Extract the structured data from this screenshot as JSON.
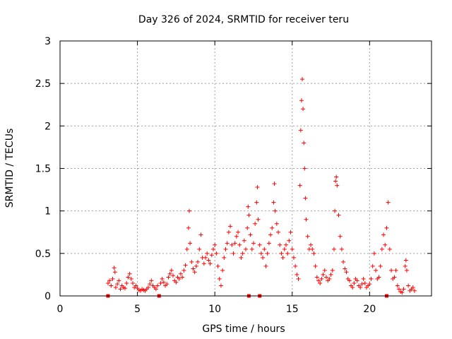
{
  "chart_data": {
    "type": "scatter",
    "title": "Day 326 of 2024, SRMTID for receiver teru",
    "xlabel": "GPS time / hours",
    "ylabel": "SRMTID / TECUs",
    "xlim": [
      0,
      24
    ],
    "ylim": [
      0,
      3
    ],
    "xticks": [
      0,
      5,
      10,
      15,
      20
    ],
    "yticks": [
      0,
      0.5,
      1,
      1.5,
      2,
      2.5,
      3
    ],
    "xtick_labels": [
      "0",
      "5",
      "10",
      "15",
      "20"
    ],
    "ytick_labels": [
      "0",
      "0.5",
      "1",
      "1.5",
      "2",
      "2.5",
      "3"
    ],
    "grid": true,
    "marker": "+",
    "color": "#ff0000",
    "gap_markers_x": [
      3.1,
      6.4,
      12.2,
      12.9,
      21.1
    ],
    "series": [
      {
        "name": "SRMTID",
        "points": [
          [
            3.1,
            0.15
          ],
          [
            3.2,
            0.18
          ],
          [
            3.3,
            0.12
          ],
          [
            3.4,
            0.2
          ],
          [
            3.5,
            0.33
          ],
          [
            3.55,
            0.28
          ],
          [
            3.6,
            0.1
          ],
          [
            3.7,
            0.14
          ],
          [
            3.8,
            0.18
          ],
          [
            3.9,
            0.08
          ],
          [
            4.0,
            0.12
          ],
          [
            4.1,
            0.1
          ],
          [
            4.2,
            0.09
          ],
          [
            4.3,
            0.15
          ],
          [
            4.4,
            0.22
          ],
          [
            4.5,
            0.26
          ],
          [
            4.6,
            0.2
          ],
          [
            4.7,
            0.15
          ],
          [
            4.8,
            0.1
          ],
          [
            4.9,
            0.12
          ],
          [
            5.0,
            0.09
          ],
          [
            5.1,
            0.07
          ],
          [
            5.2,
            0.06
          ],
          [
            5.3,
            0.08
          ],
          [
            5.4,
            0.07
          ],
          [
            5.5,
            0.06
          ],
          [
            5.6,
            0.08
          ],
          [
            5.7,
            0.1
          ],
          [
            5.8,
            0.14
          ],
          [
            5.9,
            0.18
          ],
          [
            6.0,
            0.12
          ],
          [
            6.1,
            0.1
          ],
          [
            6.2,
            0.08
          ],
          [
            6.3,
            0.12
          ],
          [
            6.5,
            0.15
          ],
          [
            6.6,
            0.2
          ],
          [
            6.7,
            0.16
          ],
          [
            6.8,
            0.12
          ],
          [
            6.9,
            0.14
          ],
          [
            7.0,
            0.22
          ],
          [
            7.1,
            0.26
          ],
          [
            7.2,
            0.3
          ],
          [
            7.3,
            0.24
          ],
          [
            7.4,
            0.18
          ],
          [
            7.5,
            0.16
          ],
          [
            7.6,
            0.22
          ],
          [
            7.7,
            0.2
          ],
          [
            7.8,
            0.26
          ],
          [
            7.9,
            0.22
          ],
          [
            8.0,
            0.3
          ],
          [
            8.1,
            0.36
          ],
          [
            8.2,
            0.55
          ],
          [
            8.3,
            0.8
          ],
          [
            8.35,
            1.0
          ],
          [
            8.4,
            0.62
          ],
          [
            8.5,
            0.4
          ],
          [
            8.6,
            0.32
          ],
          [
            8.7,
            0.28
          ],
          [
            8.8,
            0.35
          ],
          [
            8.9,
            0.4
          ],
          [
            9.0,
            0.55
          ],
          [
            9.1,
            0.72
          ],
          [
            9.2,
            0.45
          ],
          [
            9.3,
            0.38
          ],
          [
            9.4,
            0.45
          ],
          [
            9.5,
            0.5
          ],
          [
            9.6,
            0.42
          ],
          [
            9.7,
            0.38
          ],
          [
            9.8,
            0.48
          ],
          [
            9.9,
            0.55
          ],
          [
            10.0,
            0.6
          ],
          [
            10.1,
            0.5
          ],
          [
            10.2,
            0.35
          ],
          [
            10.3,
            0.2
          ],
          [
            10.4,
            0.12
          ],
          [
            10.5,
            0.3
          ],
          [
            10.6,
            0.45
          ],
          [
            10.7,
            0.55
          ],
          [
            10.8,
            0.62
          ],
          [
            10.9,
            0.75
          ],
          [
            11.0,
            0.82
          ],
          [
            11.1,
            0.6
          ],
          [
            11.2,
            0.5
          ],
          [
            11.3,
            0.62
          ],
          [
            11.4,
            0.7
          ],
          [
            11.5,
            0.75
          ],
          [
            11.6,
            0.6
          ],
          [
            11.7,
            0.45
          ],
          [
            11.8,
            0.5
          ],
          [
            11.9,
            0.65
          ],
          [
            12.0,
            0.55
          ],
          [
            12.1,
            0.8
          ],
          [
            12.15,
            1.05
          ],
          [
            12.2,
            0.95
          ],
          [
            12.3,
            0.72
          ],
          [
            12.4,
            0.55
          ],
          [
            12.5,
            0.62
          ],
          [
            12.6,
            0.85
          ],
          [
            12.7,
            1.1
          ],
          [
            12.75,
            1.28
          ],
          [
            12.8,
            0.9
          ],
          [
            12.9,
            0.6
          ],
          [
            13.0,
            0.5
          ],
          [
            13.1,
            0.45
          ],
          [
            13.2,
            0.55
          ],
          [
            13.3,
            0.35
          ],
          [
            13.4,
            0.5
          ],
          [
            13.5,
            0.62
          ],
          [
            13.6,
            0.72
          ],
          [
            13.7,
            0.8
          ],
          [
            13.8,
            1.1
          ],
          [
            13.85,
            1.32
          ],
          [
            13.9,
            1.0
          ],
          [
            14.0,
            0.85
          ],
          [
            14.1,
            0.75
          ],
          [
            14.2,
            0.6
          ],
          [
            14.3,
            0.5
          ],
          [
            14.4,
            0.45
          ],
          [
            14.5,
            0.55
          ],
          [
            14.6,
            0.6
          ],
          [
            14.7,
            0.5
          ],
          [
            14.8,
            0.65
          ],
          [
            14.9,
            0.75
          ],
          [
            15.0,
            0.55
          ],
          [
            15.1,
            0.45
          ],
          [
            15.2,
            0.35
          ],
          [
            15.3,
            0.25
          ],
          [
            15.4,
            0.2
          ],
          [
            15.5,
            1.3
          ],
          [
            15.55,
            1.95
          ],
          [
            15.6,
            2.3
          ],
          [
            15.65,
            2.55
          ],
          [
            15.7,
            2.2
          ],
          [
            15.75,
            1.8
          ],
          [
            15.8,
            1.5
          ],
          [
            15.85,
            1.15
          ],
          [
            15.9,
            0.9
          ],
          [
            16.0,
            0.7
          ],
          [
            16.1,
            0.55
          ],
          [
            16.2,
            0.6
          ],
          [
            16.3,
            0.55
          ],
          [
            16.4,
            0.5
          ],
          [
            16.5,
            0.35
          ],
          [
            16.6,
            0.22
          ],
          [
            16.7,
            0.18
          ],
          [
            16.8,
            0.15
          ],
          [
            16.9,
            0.2
          ],
          [
            17.0,
            0.25
          ],
          [
            17.1,
            0.3
          ],
          [
            17.2,
            0.22
          ],
          [
            17.3,
            0.18
          ],
          [
            17.4,
            0.2
          ],
          [
            17.5,
            0.25
          ],
          [
            17.6,
            0.3
          ],
          [
            17.7,
            0.55
          ],
          [
            17.75,
            1.0
          ],
          [
            17.8,
            1.35
          ],
          [
            17.85,
            1.4
          ],
          [
            17.9,
            1.3
          ],
          [
            18.0,
            0.95
          ],
          [
            18.1,
            0.7
          ],
          [
            18.2,
            0.55
          ],
          [
            18.3,
            0.4
          ],
          [
            18.4,
            0.32
          ],
          [
            18.5,
            0.28
          ],
          [
            18.6,
            0.2
          ],
          [
            18.7,
            0.18
          ],
          [
            18.8,
            0.12
          ],
          [
            18.9,
            0.1
          ],
          [
            19.0,
            0.15
          ],
          [
            19.1,
            0.2
          ],
          [
            19.2,
            0.18
          ],
          [
            19.3,
            0.12
          ],
          [
            19.4,
            0.1
          ],
          [
            19.5,
            0.14
          ],
          [
            19.6,
            0.2
          ],
          [
            19.7,
            0.15
          ],
          [
            19.8,
            0.1
          ],
          [
            19.9,
            0.12
          ],
          [
            20.0,
            0.14
          ],
          [
            20.1,
            0.2
          ],
          [
            20.2,
            0.35
          ],
          [
            20.3,
            0.5
          ],
          [
            20.4,
            0.3
          ],
          [
            20.5,
            0.2
          ],
          [
            20.6,
            0.22
          ],
          [
            20.7,
            0.35
          ],
          [
            20.8,
            0.55
          ],
          [
            20.9,
            0.72
          ],
          [
            21.0,
            0.6
          ],
          [
            21.1,
            0.8
          ],
          [
            21.2,
            1.1
          ],
          [
            21.3,
            0.55
          ],
          [
            21.4,
            0.3
          ],
          [
            21.5,
            0.2
          ],
          [
            21.6,
            0.22
          ],
          [
            21.7,
            0.3
          ],
          [
            21.8,
            0.12
          ],
          [
            21.9,
            0.08
          ],
          [
            22.0,
            0.05
          ],
          [
            22.1,
            0.04
          ],
          [
            22.2,
            0.08
          ],
          [
            22.3,
            0.35
          ],
          [
            22.35,
            0.42
          ],
          [
            22.4,
            0.3
          ],
          [
            22.5,
            0.12
          ],
          [
            22.6,
            0.06
          ],
          [
            22.7,
            0.08
          ],
          [
            22.8,
            0.1
          ],
          [
            22.9,
            0.06
          ]
        ]
      }
    ]
  }
}
